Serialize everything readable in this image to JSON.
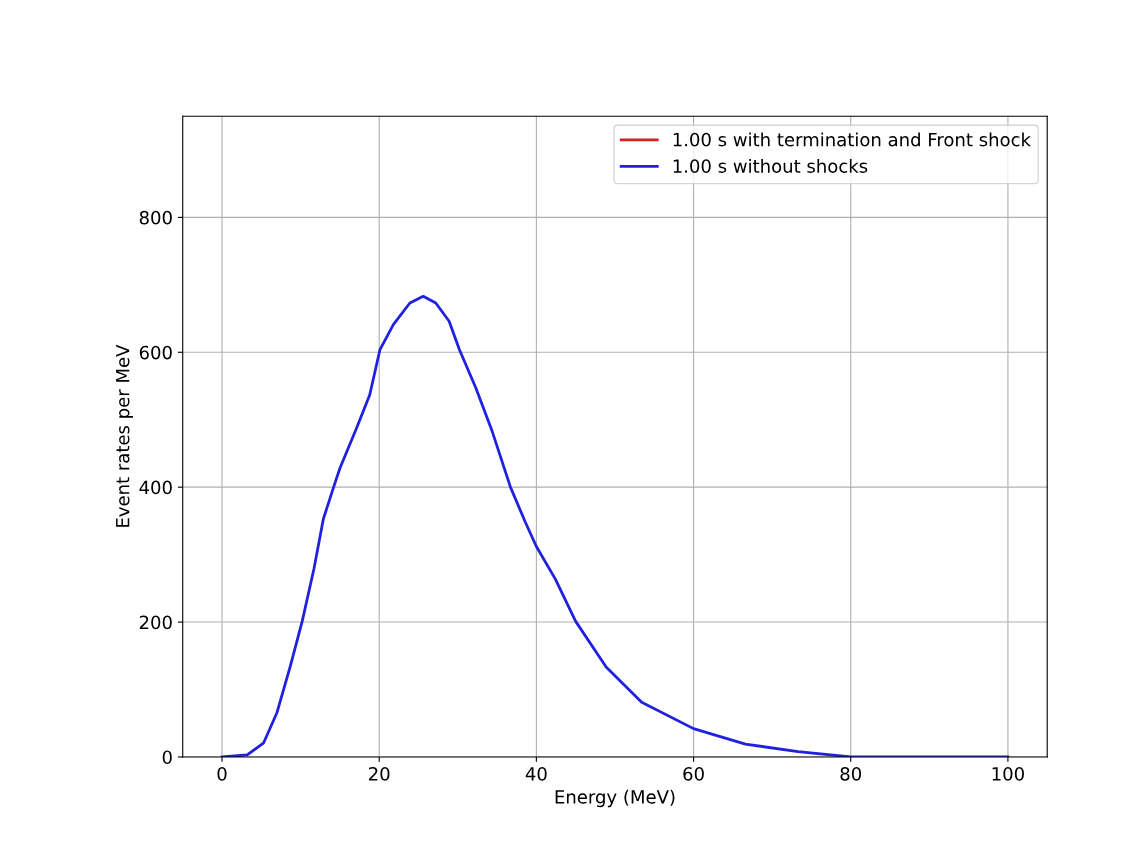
{
  "chart_data": {
    "type": "line",
    "xlabel": "Energy (MeV)",
    "ylabel": "Event rates per MeV",
    "x": [
      0,
      3.2,
      5.3,
      7.0,
      8.7,
      10.2,
      11.7,
      12.9,
      14.2,
      15.0,
      17.1,
      18.8,
      20.1,
      21.8,
      23.9,
      25.6,
      27.2,
      28.9,
      30.2,
      32.3,
      34.4,
      36.7,
      38.6,
      40,
      42.4,
      45.0,
      48.9,
      53.4,
      60,
      66.6,
      73.3,
      80,
      100
    ],
    "series": [
      {
        "name": "1.00 s with termination and Front shock",
        "color": "#d62020",
        "values": [
          null,
          null,
          null,
          null,
          null,
          null,
          null,
          null,
          null,
          null,
          null,
          null,
          null,
          null,
          null,
          null,
          null,
          null,
          null,
          null,
          null,
          null,
          null,
          null,
          null,
          null,
          null,
          null,
          null,
          null,
          null,
          null,
          null
        ]
      },
      {
        "name": "1.00 s without shocks",
        "color": "#2020e0",
        "values": [
          0,
          3,
          21,
          66,
          135,
          201,
          279,
          353,
          400,
          428,
          487,
          537,
          604,
          641,
          673,
          683,
          673,
          646,
          604,
          547,
          482,
          400,
          348,
          312,
          264,
          201,
          133,
          81,
          42,
          19,
          8,
          0,
          0
        ]
      }
    ],
    "xlim": [
      -5,
      105
    ],
    "ylim": [
      0,
      950
    ],
    "xticks": [
      0,
      20,
      40,
      60,
      80,
      100
    ],
    "yticks": [
      0,
      200,
      400,
      600,
      800
    ],
    "grid": true,
    "legend": "top right"
  }
}
